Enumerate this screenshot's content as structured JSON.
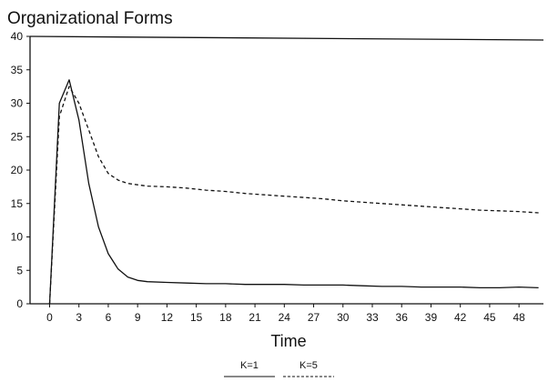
{
  "chart_data": {
    "type": "line",
    "title": "Organizational Forms",
    "xlabel": "Time",
    "ylabel": "",
    "xlim": [
      -2,
      50.5
    ],
    "ylim": [
      0,
      40
    ],
    "xticks": [
      0,
      3,
      6,
      9,
      12,
      15,
      18,
      21,
      24,
      27,
      30,
      33,
      36,
      39,
      42,
      45,
      48
    ],
    "yticks": [
      0,
      5,
      10,
      15,
      20,
      25,
      30,
      35,
      40
    ],
    "grid": false,
    "legend_position": "bottom-center",
    "series": [
      {
        "name": "K=1",
        "style": "solid",
        "x": [
          0,
          1,
          2,
          3,
          4,
          5,
          6,
          7,
          8,
          9,
          10,
          12,
          14,
          16,
          18,
          20,
          22,
          24,
          26,
          28,
          30,
          32,
          34,
          36,
          38,
          40,
          42,
          44,
          46,
          48,
          50
        ],
        "y": [
          0,
          30,
          33.5,
          27.5,
          18,
          11.5,
          7.5,
          5.2,
          4.0,
          3.5,
          3.3,
          3.2,
          3.1,
          3.0,
          3.0,
          2.9,
          2.9,
          2.9,
          2.8,
          2.8,
          2.8,
          2.7,
          2.6,
          2.6,
          2.5,
          2.5,
          2.5,
          2.4,
          2.4,
          2.5,
          2.4
        ]
      },
      {
        "name": "K=5",
        "style": "dashed",
        "x": [
          0,
          1,
          2,
          3,
          4,
          5,
          6,
          7,
          8,
          9,
          10,
          12,
          14,
          16,
          18,
          20,
          22,
          24,
          26,
          28,
          30,
          32,
          34,
          36,
          38,
          40,
          42,
          44,
          46,
          48,
          50
        ],
        "y": [
          0,
          28,
          32.5,
          30,
          26,
          22,
          19.5,
          18.5,
          18.0,
          17.8,
          17.6,
          17.5,
          17.3,
          17.0,
          16.8,
          16.5,
          16.3,
          16.1,
          15.9,
          15.7,
          15.4,
          15.2,
          15.0,
          14.8,
          14.6,
          14.4,
          14.2,
          14.0,
          13.9,
          13.8,
          13.6
        ]
      }
    ]
  }
}
